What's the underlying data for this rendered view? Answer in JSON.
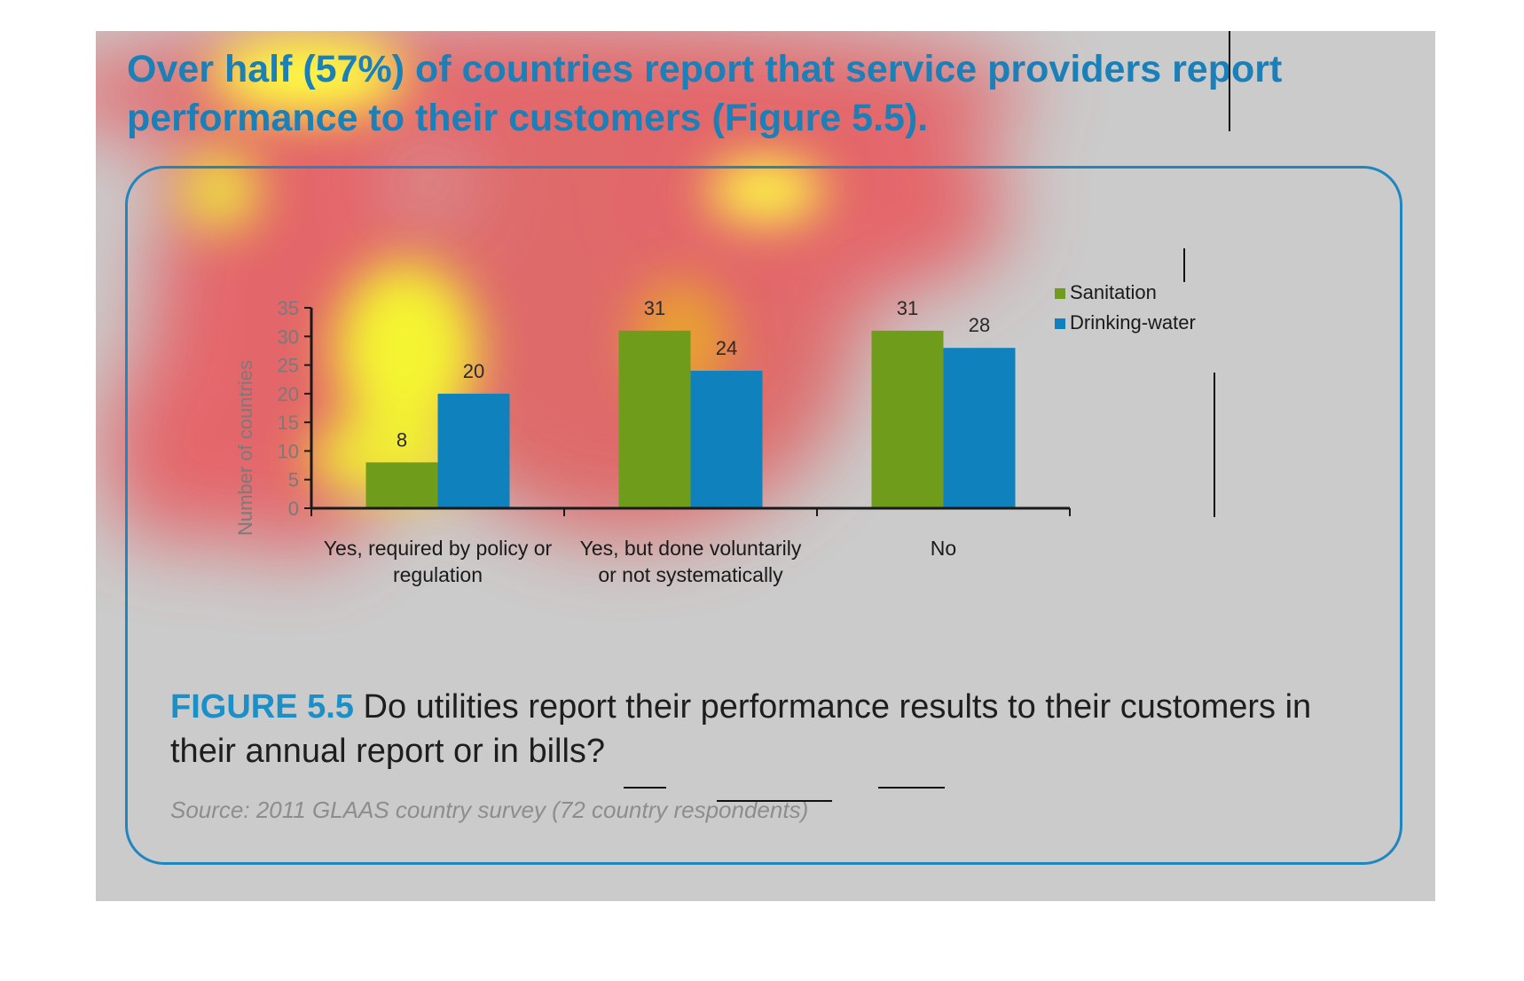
{
  "headline": "Over half (57%) of countries report that service providers report performance to their customers (Figure 5.5).",
  "figure": {
    "label": "FIGURE 5.5",
    "caption": "Do utilities report their performance results to their customers in their annual report or in bills?",
    "source": "Source: 2011 GLAAS country survey (72 country respondents)"
  },
  "colors": {
    "sanitation": "#6f9c1a",
    "drinking_water": "#0f82be",
    "accent": "#1b8fc8",
    "panel_border": "#1f86bf"
  },
  "chart_data": {
    "type": "bar",
    "title": "",
    "xlabel": "",
    "ylabel": "Number of countries",
    "ylim": [
      0,
      35
    ],
    "yticks": [
      0,
      5,
      10,
      15,
      20,
      25,
      30,
      35
    ],
    "categories": [
      [
        "Yes, required by policy or",
        "regulation"
      ],
      [
        "Yes, but done voluntarily",
        "or not systematically"
      ],
      [
        "No"
      ]
    ],
    "series": [
      {
        "name": "Sanitation",
        "color": "#6f9c1a",
        "values": [
          8,
          31,
          31
        ]
      },
      {
        "name": "Drinking-water",
        "color": "#0f82be",
        "values": [
          20,
          24,
          28
        ]
      }
    ],
    "data_labels": true,
    "grid": false,
    "legend_position": "top-right"
  }
}
